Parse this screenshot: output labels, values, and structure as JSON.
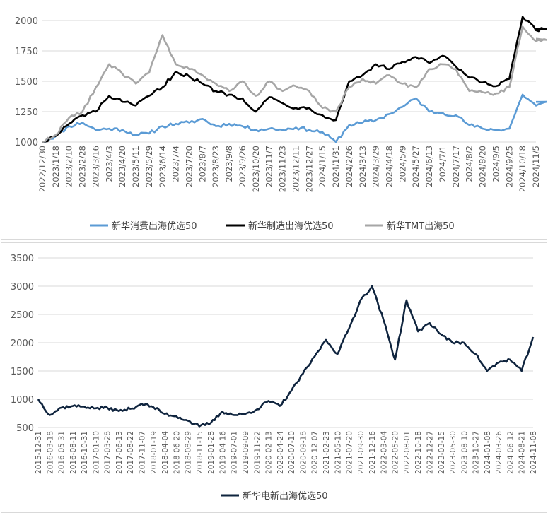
{
  "chart_data": [
    {
      "type": "line",
      "ylim": [
        1000,
        2000
      ],
      "yticks": [
        "1000",
        "1250",
        "1500",
        "1750",
        "2000"
      ],
      "grid": true,
      "legend_position": "bottom",
      "x_ticks": [
        "2022/12/30",
        "2023/1/18",
        "2023/2/10",
        "2023/2/28",
        "2023/3/16",
        "2023/4/3",
        "2023/4/20",
        "2023/5/11",
        "2023/5/29",
        "2023/6/14",
        "2023/7/4",
        "2023/7/20",
        "2023/8/7",
        "2023/8/23",
        "2023/9/8",
        "2023/9/26",
        "2023/10/20",
        "2023/11/7",
        "2023/11/23",
        "2023/12/11",
        "2023/12/27",
        "2024/1/15",
        "2024/1/31",
        "2024/2/26",
        "2024/3/13",
        "2024/3/29",
        "2024/4/18",
        "2024/5/9",
        "2024/5/27",
        "2024/6/13",
        "2024/7/1",
        "2024/7/17",
        "2024/8/2",
        "2024/8/20",
        "2024/9/5",
        "2024/9/25",
        "2024/10/18",
        "2024/11/5"
      ],
      "series": [
        {
          "name": "新华消费出海优选50",
          "color": "#5b9bd5",
          "x": [
            "2022/12/30",
            "2023/1/18",
            "2023/2/10",
            "2023/2/28",
            "2023/3/16",
            "2023/4/3",
            "2023/4/20",
            "2023/5/11",
            "2023/5/29",
            "2023/6/14",
            "2023/7/4",
            "2023/7/20",
            "2023/8/7",
            "2023/8/23",
            "2023/9/8",
            "2023/9/26",
            "2023/10/20",
            "2023/11/7",
            "2023/11/23",
            "2023/12/11",
            "2023/12/27",
            "2024/1/15",
            "2024/1/31",
            "2024/2/26",
            "2024/3/13",
            "2024/3/29",
            "2024/4/18",
            "2024/5/9",
            "2024/5/27",
            "2024/6/13",
            "2024/7/1",
            "2024/7/17",
            "2024/8/2",
            "2024/8/20",
            "2024/9/5",
            "2024/9/25",
            "2024/10/18",
            "2024/11/5",
            "2024/11/8"
          ],
          "values": [
            1000,
            1050,
            1130,
            1160,
            1100,
            1110,
            1100,
            1060,
            1070,
            1130,
            1150,
            1160,
            1190,
            1130,
            1150,
            1130,
            1100,
            1110,
            1100,
            1120,
            1100,
            1080,
            1000,
            1140,
            1160,
            1180,
            1230,
            1290,
            1360,
            1250,
            1240,
            1220,
            1140,
            1110,
            1100,
            1110,
            1390,
            1300,
            1330
          ]
        },
        {
          "name": "新华制造出海优选50",
          "color": "#000000",
          "x": [
            "2022/12/30",
            "2023/1/18",
            "2023/2/10",
            "2023/2/28",
            "2023/3/16",
            "2023/4/3",
            "2023/4/20",
            "2023/5/11",
            "2023/5/29",
            "2023/6/14",
            "2023/7/4",
            "2023/7/20",
            "2023/8/7",
            "2023/8/23",
            "2023/9/8",
            "2023/9/26",
            "2023/10/20",
            "2023/11/7",
            "2023/11/23",
            "2023/12/11",
            "2023/12/27",
            "2024/1/15",
            "2024/1/31",
            "2024/2/26",
            "2024/3/13",
            "2024/3/29",
            "2024/4/18",
            "2024/5/9",
            "2024/5/27",
            "2024/6/13",
            "2024/7/1",
            "2024/7/17",
            "2024/8/2",
            "2024/8/20",
            "2024/9/5",
            "2024/9/25",
            "2024/10/18",
            "2024/11/5",
            "2024/11/8"
          ],
          "values": [
            1000,
            1050,
            1150,
            1220,
            1250,
            1380,
            1330,
            1300,
            1380,
            1450,
            1580,
            1540,
            1480,
            1420,
            1390,
            1360,
            1250,
            1370,
            1320,
            1280,
            1280,
            1220,
            1180,
            1500,
            1550,
            1640,
            1600,
            1660,
            1700,
            1650,
            1710,
            1620,
            1530,
            1490,
            1460,
            1520,
            2030,
            1920,
            1930
          ]
        },
        {
          "name": "新华TMT出海50",
          "color": "#a6a6a6",
          "x": [
            "2022/12/30",
            "2023/1/18",
            "2023/2/10",
            "2023/2/28",
            "2023/3/16",
            "2023/4/3",
            "2023/4/20",
            "2023/5/11",
            "2023/5/29",
            "2023/6/14",
            "2023/7/4",
            "2023/7/20",
            "2023/8/7",
            "2023/8/23",
            "2023/9/8",
            "2023/9/26",
            "2023/10/20",
            "2023/11/7",
            "2023/11/23",
            "2023/12/11",
            "2023/12/27",
            "2024/1/15",
            "2024/1/31",
            "2024/2/26",
            "2024/3/13",
            "2024/3/29",
            "2024/4/18",
            "2024/5/9",
            "2024/5/27",
            "2024/6/13",
            "2024/7/1",
            "2024/7/17",
            "2024/8/2",
            "2024/8/20",
            "2024/9/5",
            "2024/9/25",
            "2024/10/18",
            "2024/11/5",
            "2024/11/8"
          ],
          "values": [
            1000,
            1060,
            1200,
            1250,
            1450,
            1640,
            1560,
            1480,
            1570,
            1880,
            1640,
            1600,
            1550,
            1480,
            1420,
            1500,
            1380,
            1500,
            1420,
            1460,
            1420,
            1280,
            1250,
            1450,
            1520,
            1480,
            1550,
            1480,
            1450,
            1600,
            1640,
            1600,
            1420,
            1410,
            1400,
            1450,
            1950,
            1830,
            1850
          ]
        }
      ]
    },
    {
      "type": "line",
      "ylim": [
        500,
        3500
      ],
      "yticks": [
        "500",
        "1000",
        "1500",
        "2000",
        "2500",
        "3000",
        "3500"
      ],
      "grid": true,
      "legend_position": "bottom",
      "x_ticks": [
        "2015-12-31",
        "2016-03-18",
        "2016-05-31",
        "2016-08-11",
        "2016-10-31",
        "2017-01-10",
        "2017-03-28",
        "2017-06-13",
        "2017-08-22",
        "2017-11-07",
        "2018-01-19",
        "2018-04-04",
        "2018-06-20",
        "2018-08-29",
        "2018-11-15",
        "2019-01-28",
        "2019-04-16",
        "2019-07-01",
        "2019-09-09",
        "2019-11-22",
        "2020-02-13",
        "2020-04-24",
        "2020-07-10",
        "2020-09-18",
        "2020-12-07",
        "2021-02-23",
        "2021-05-10",
        "2021-07-20",
        "2021-09-30",
        "2021-12-16",
        "2022-03-04",
        "2022-05-20",
        "2022-08-01",
        "2022-10-18",
        "2022-12-27",
        "2023-03-15",
        "2023-05-30",
        "2023-08-10",
        "2023-10-27",
        "2024-01-08",
        "2024-03-26",
        "2024-06-12",
        "2024-08-21",
        "2024-11-08"
      ],
      "series": [
        {
          "name": "新华电新出海优选50",
          "color": "#0f243e",
          "x": [
            "2015-12-31",
            "2016-03-18",
            "2016-05-31",
            "2016-08-11",
            "2016-10-31",
            "2017-01-10",
            "2017-03-28",
            "2017-06-13",
            "2017-08-22",
            "2017-11-07",
            "2018-01-19",
            "2018-04-04",
            "2018-06-20",
            "2018-08-29",
            "2018-11-15",
            "2019-01-28",
            "2019-04-16",
            "2019-07-01",
            "2019-09-09",
            "2019-11-22",
            "2020-02-13",
            "2020-04-24",
            "2020-07-10",
            "2020-09-18",
            "2020-12-07",
            "2021-02-23",
            "2021-05-10",
            "2021-07-20",
            "2021-09-30",
            "2021-12-16",
            "2022-03-04",
            "2022-05-20",
            "2022-08-01",
            "2022-10-18",
            "2022-12-27",
            "2023-03-15",
            "2023-05-30",
            "2023-08-10",
            "2023-10-27",
            "2024-01-08",
            "2024-03-26",
            "2024-06-12",
            "2024-08-21",
            "2024-11-08"
          ],
          "values": [
            1000,
            720,
            850,
            880,
            870,
            840,
            850,
            790,
            830,
            920,
            860,
            740,
            700,
            620,
            520,
            580,
            780,
            720,
            740,
            820,
            970,
            880,
            1150,
            1450,
            1750,
            2050,
            1800,
            2250,
            2750,
            3000,
            2400,
            1700,
            2750,
            2200,
            2350,
            2150,
            2000,
            2000,
            1800,
            1500,
            1650,
            1700,
            1500,
            2100
          ]
        }
      ]
    }
  ]
}
